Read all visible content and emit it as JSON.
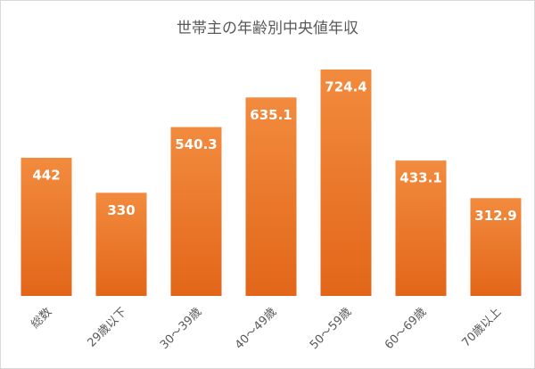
{
  "chart_data": {
    "type": "bar",
    "title": "世帯主の年齢別中央値年収",
    "categories": [
      "総数",
      "29歳以下",
      "30～39歳",
      "40～49歳",
      "50～59歳",
      "60～69歳",
      "70歳以上"
    ],
    "values": [
      442,
      330,
      540.3,
      635.1,
      724.4,
      433.1,
      312.9
    ],
    "color": "#ed7d31",
    "ylim": [
      0,
      800
    ]
  }
}
